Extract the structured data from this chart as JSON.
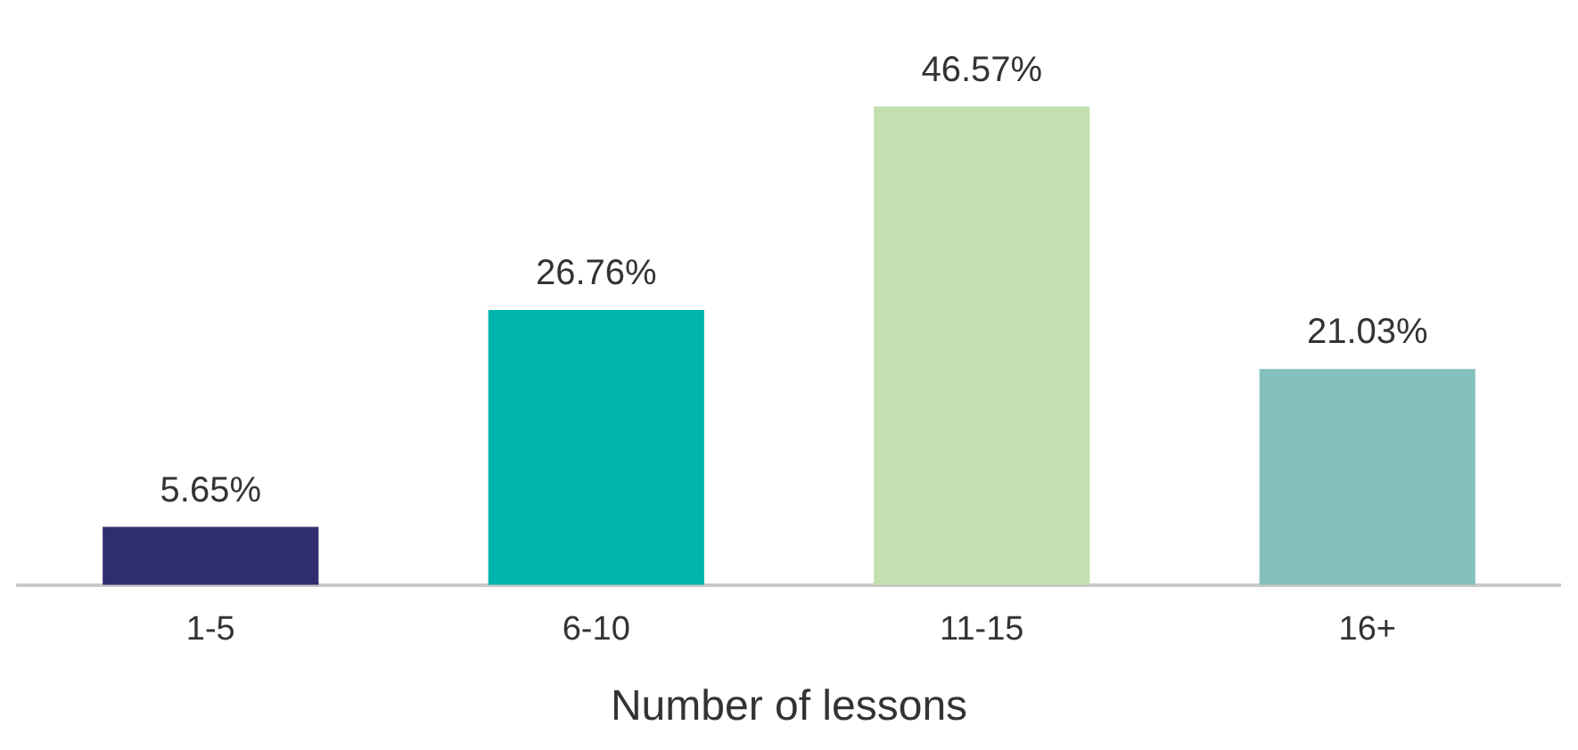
{
  "chart_data": {
    "type": "bar",
    "xlabel": "Number of lessons",
    "categories": [
      "1-5",
      "6-10",
      "11-15",
      "16+"
    ],
    "values": [
      5.65,
      26.76,
      46.57,
      21.03
    ],
    "colors": [
      "#312e6e",
      "#00b5ad",
      "#c3e0b0",
      "#85c0bf"
    ],
    "value_labels": [
      "5.65%",
      "26.76%",
      "46.57%",
      "21.03%"
    ],
    "grid": false,
    "legend": false
  }
}
